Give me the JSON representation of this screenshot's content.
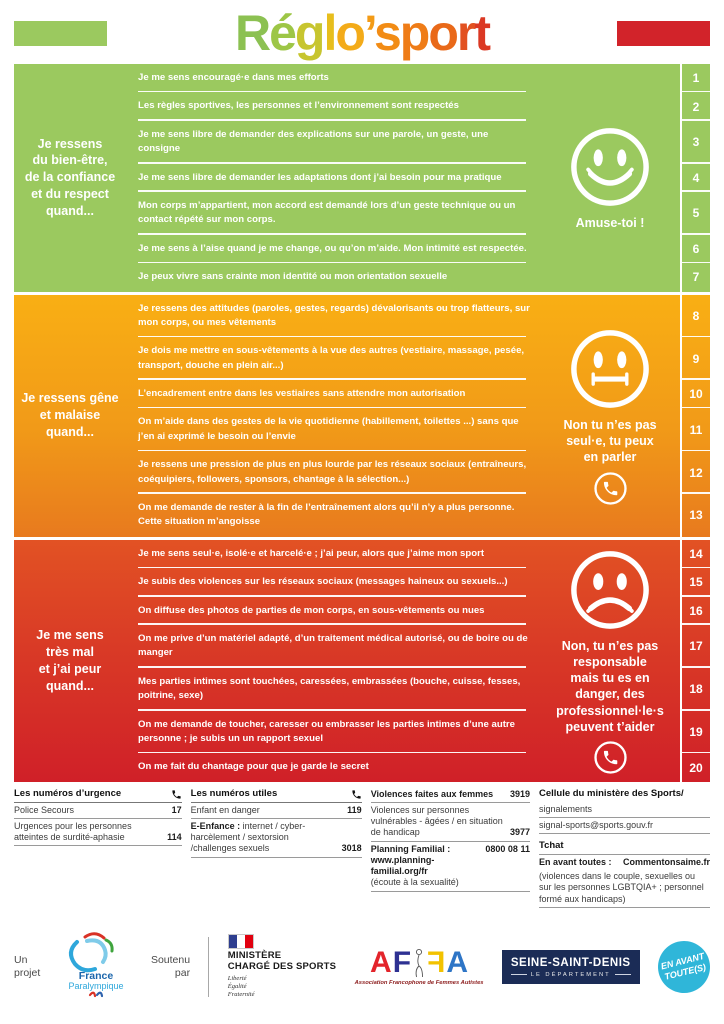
{
  "title": {
    "text": "Réglo’sport",
    "letter_colors": [
      "#8CC152",
      "#9DC646",
      "#C7C52F",
      "#E7BE1D",
      "#F3AB19",
      "#F39B16",
      "#F28C15",
      "#EF7C17",
      "#E96919",
      "#E25120",
      "#DB3823"
    ]
  },
  "colors": {
    "green": "#9BC95F",
    "orange_top": "#F9AF14",
    "orange_bottom": "#E87A1E",
    "red_top": "#E25224",
    "red_bottom": "#D02028",
    "title_bar_green": "#9BC95F",
    "title_bar_red": "#D2232A",
    "department_navy": "#1B2C56",
    "badge_cyan": "#2FB6D9"
  },
  "sections": [
    {
      "theme": "green",
      "mood": "happy",
      "label": "Je ressens\ndu bien-être,\nde la confiance\net du respect\nquand...",
      "advice": "Amuse-toi !",
      "phone_icon": false,
      "items": [
        {
          "num": "1",
          "text": "Je me sens encouragé·e dans mes efforts"
        },
        {
          "num": "2",
          "text": "Les règles sportives, les personnes et l’environnement sont respectés"
        },
        {
          "num": "3",
          "text": "Je me sens libre de demander des explications sur une parole, un geste, une consigne"
        },
        {
          "num": "4",
          "text": "Je me sens libre de demander les adaptations dont j’ai besoin pour ma pratique"
        },
        {
          "num": "5",
          "text": "Mon corps m’appartient, mon accord est demandé lors d’un geste technique ou un contact répété sur mon corps."
        },
        {
          "num": "6",
          "text": "Je me sens à l’aise quand je me change, ou qu’on m’aide. Mon intimité est respectée."
        },
        {
          "num": "7",
          "text": "Je peux vivre sans crainte mon identité ou mon orientation sexuelle"
        }
      ]
    },
    {
      "theme": "orange",
      "mood": "neutral",
      "label": "Je ressens gêne\net malaise\nquand...",
      "advice": "Non tu n’es pas\nseul·e, tu peux\nen parler",
      "phone_icon": true,
      "items": [
        {
          "num": "8",
          "text": "Je ressens des attitudes (paroles, gestes, regards) dévalorisants ou trop flatteurs, sur mon corps, ou mes vêtements"
        },
        {
          "num": "9",
          "text": "Je dois me mettre en sous-vêtements à la vue des autres (vestiaire, massage, pesée, transport, douche en plein air...)"
        },
        {
          "num": "10",
          "text": "L’encadrement entre dans les vestiaires sans attendre mon autorisation"
        },
        {
          "num": "11",
          "text": "On m’aide dans des gestes de la vie quotidienne (habillement, toilettes ...) sans que j’en ai exprimé le besoin ou l’envie"
        },
        {
          "num": "12",
          "text": "Je ressens une pression de plus en plus lourde par les réseaux sociaux (entraîneurs, coéquipiers, followers, sponsors, chantage à la sélection...)"
        },
        {
          "num": "13",
          "text": "On me demande de rester à la fin de l’entraînement alors qu’il n’y a plus personne. Cette situation m’angoisse"
        }
      ]
    },
    {
      "theme": "red",
      "mood": "sad",
      "label": "Je me sens\ntrès mal\net j’ai peur\nquand...",
      "advice": "Non, tu n’es pas\nresponsable\nmais tu es en\ndanger, des\nprofessionnel·le·s\npeuvent t’aider",
      "phone_icon": true,
      "items": [
        {
          "num": "14",
          "text": "Je me sens seul·e, isolé·e et harcelé·e ; j’ai peur, alors que j’aime mon sport"
        },
        {
          "num": "15",
          "text": "Je subis des violences sur les réseaux sociaux (messages haineux ou sexuels...)"
        },
        {
          "num": "16",
          "text": "On diffuse des photos de parties de mon corps, en sous-vêtements ou nues"
        },
        {
          "num": "17",
          "text": "On me prive d’un matériel adapté, d’un traitement médical autorisé, ou de boire ou de manger"
        },
        {
          "num": "18",
          "text": "Mes parties intimes sont touchées, caressées, embrassées (bouche, cuisse, fesses, poitrine, sexe)"
        },
        {
          "num": "19",
          "text": "On me demande de toucher, caresser ou embrasser les parties intimes d’une autre personne ; je subis un un rapport sexuel"
        },
        {
          "num": "20",
          "text": "On me fait du chantage pour que je garde le secret"
        }
      ]
    }
  ],
  "footer": {
    "columns": [
      {
        "header": "Les numéros d’urgence",
        "phone_icon": true,
        "rows": [
          {
            "text": "Police Secours",
            "num": "17"
          },
          {
            "text": "Urgences pour les personnes atteintes de surdité-aphasie",
            "num": "114"
          }
        ]
      },
      {
        "header": "Les numéros utiles",
        "phone_icon": true,
        "rows": [
          {
            "text": "Enfant en danger",
            "num": "119"
          },
          {
            "prefix": "E-Enfance :",
            "text": "internet / cyber-harcèlement / sextorsion /challenges sexuels",
            "num": "3018"
          }
        ]
      },
      {
        "rows": [
          {
            "text": "Violences faites aux femmes",
            "bold": true,
            "num": "3919"
          },
          {
            "text": "Violences sur personnes vulnérables - âgées / en situation de handicap",
            "num": "3977"
          },
          {
            "prefix": "Planning Familial :",
            "extra_lines": [
              {
                "t": "www.planning-familial.org/fr",
                "b": true
              },
              {
                "t": "(écoute à la sexualité)",
                "b": false
              }
            ],
            "num": "0800 08 11",
            "num_top": true
          }
        ]
      }
    ],
    "sports": {
      "header": "Cellule du ministère des Sports/",
      "subheader": "signalements",
      "email": "signal-sports@sports.gouv.fr",
      "tchat_header": "Tchat",
      "tchat_service": "En avant toutes :",
      "tchat_site": "Commentonsaime.fr",
      "tchat_note": "(violences dans le couple, sexuelles ou sur les personnes LGBTQIA+ ; personnel formé aux handicaps)"
    }
  },
  "logos": {
    "project_label": "Un\nprojet",
    "paralympic": {
      "line1": "France",
      "line2": "Paralympique"
    },
    "support_label": "Soutenu\npar",
    "ministry": {
      "line1": "MINISTÈRE",
      "line2": "CHARGÉ DES SPORTS",
      "motto": [
        "Liberté",
        "Égalité",
        "Fraternité"
      ]
    },
    "affa": {
      "l1": "A",
      "l2": "F",
      "l3": "F",
      "l4": "A",
      "caption": "Association Francophone de Femmes Autistes"
    },
    "department": {
      "name": "SEINE-SAINT-DENIS",
      "sub": "LE DÉPARTEMENT"
    },
    "badge": {
      "line1": "EN AVANT",
      "line2": "TOUTE(S)"
    }
  }
}
